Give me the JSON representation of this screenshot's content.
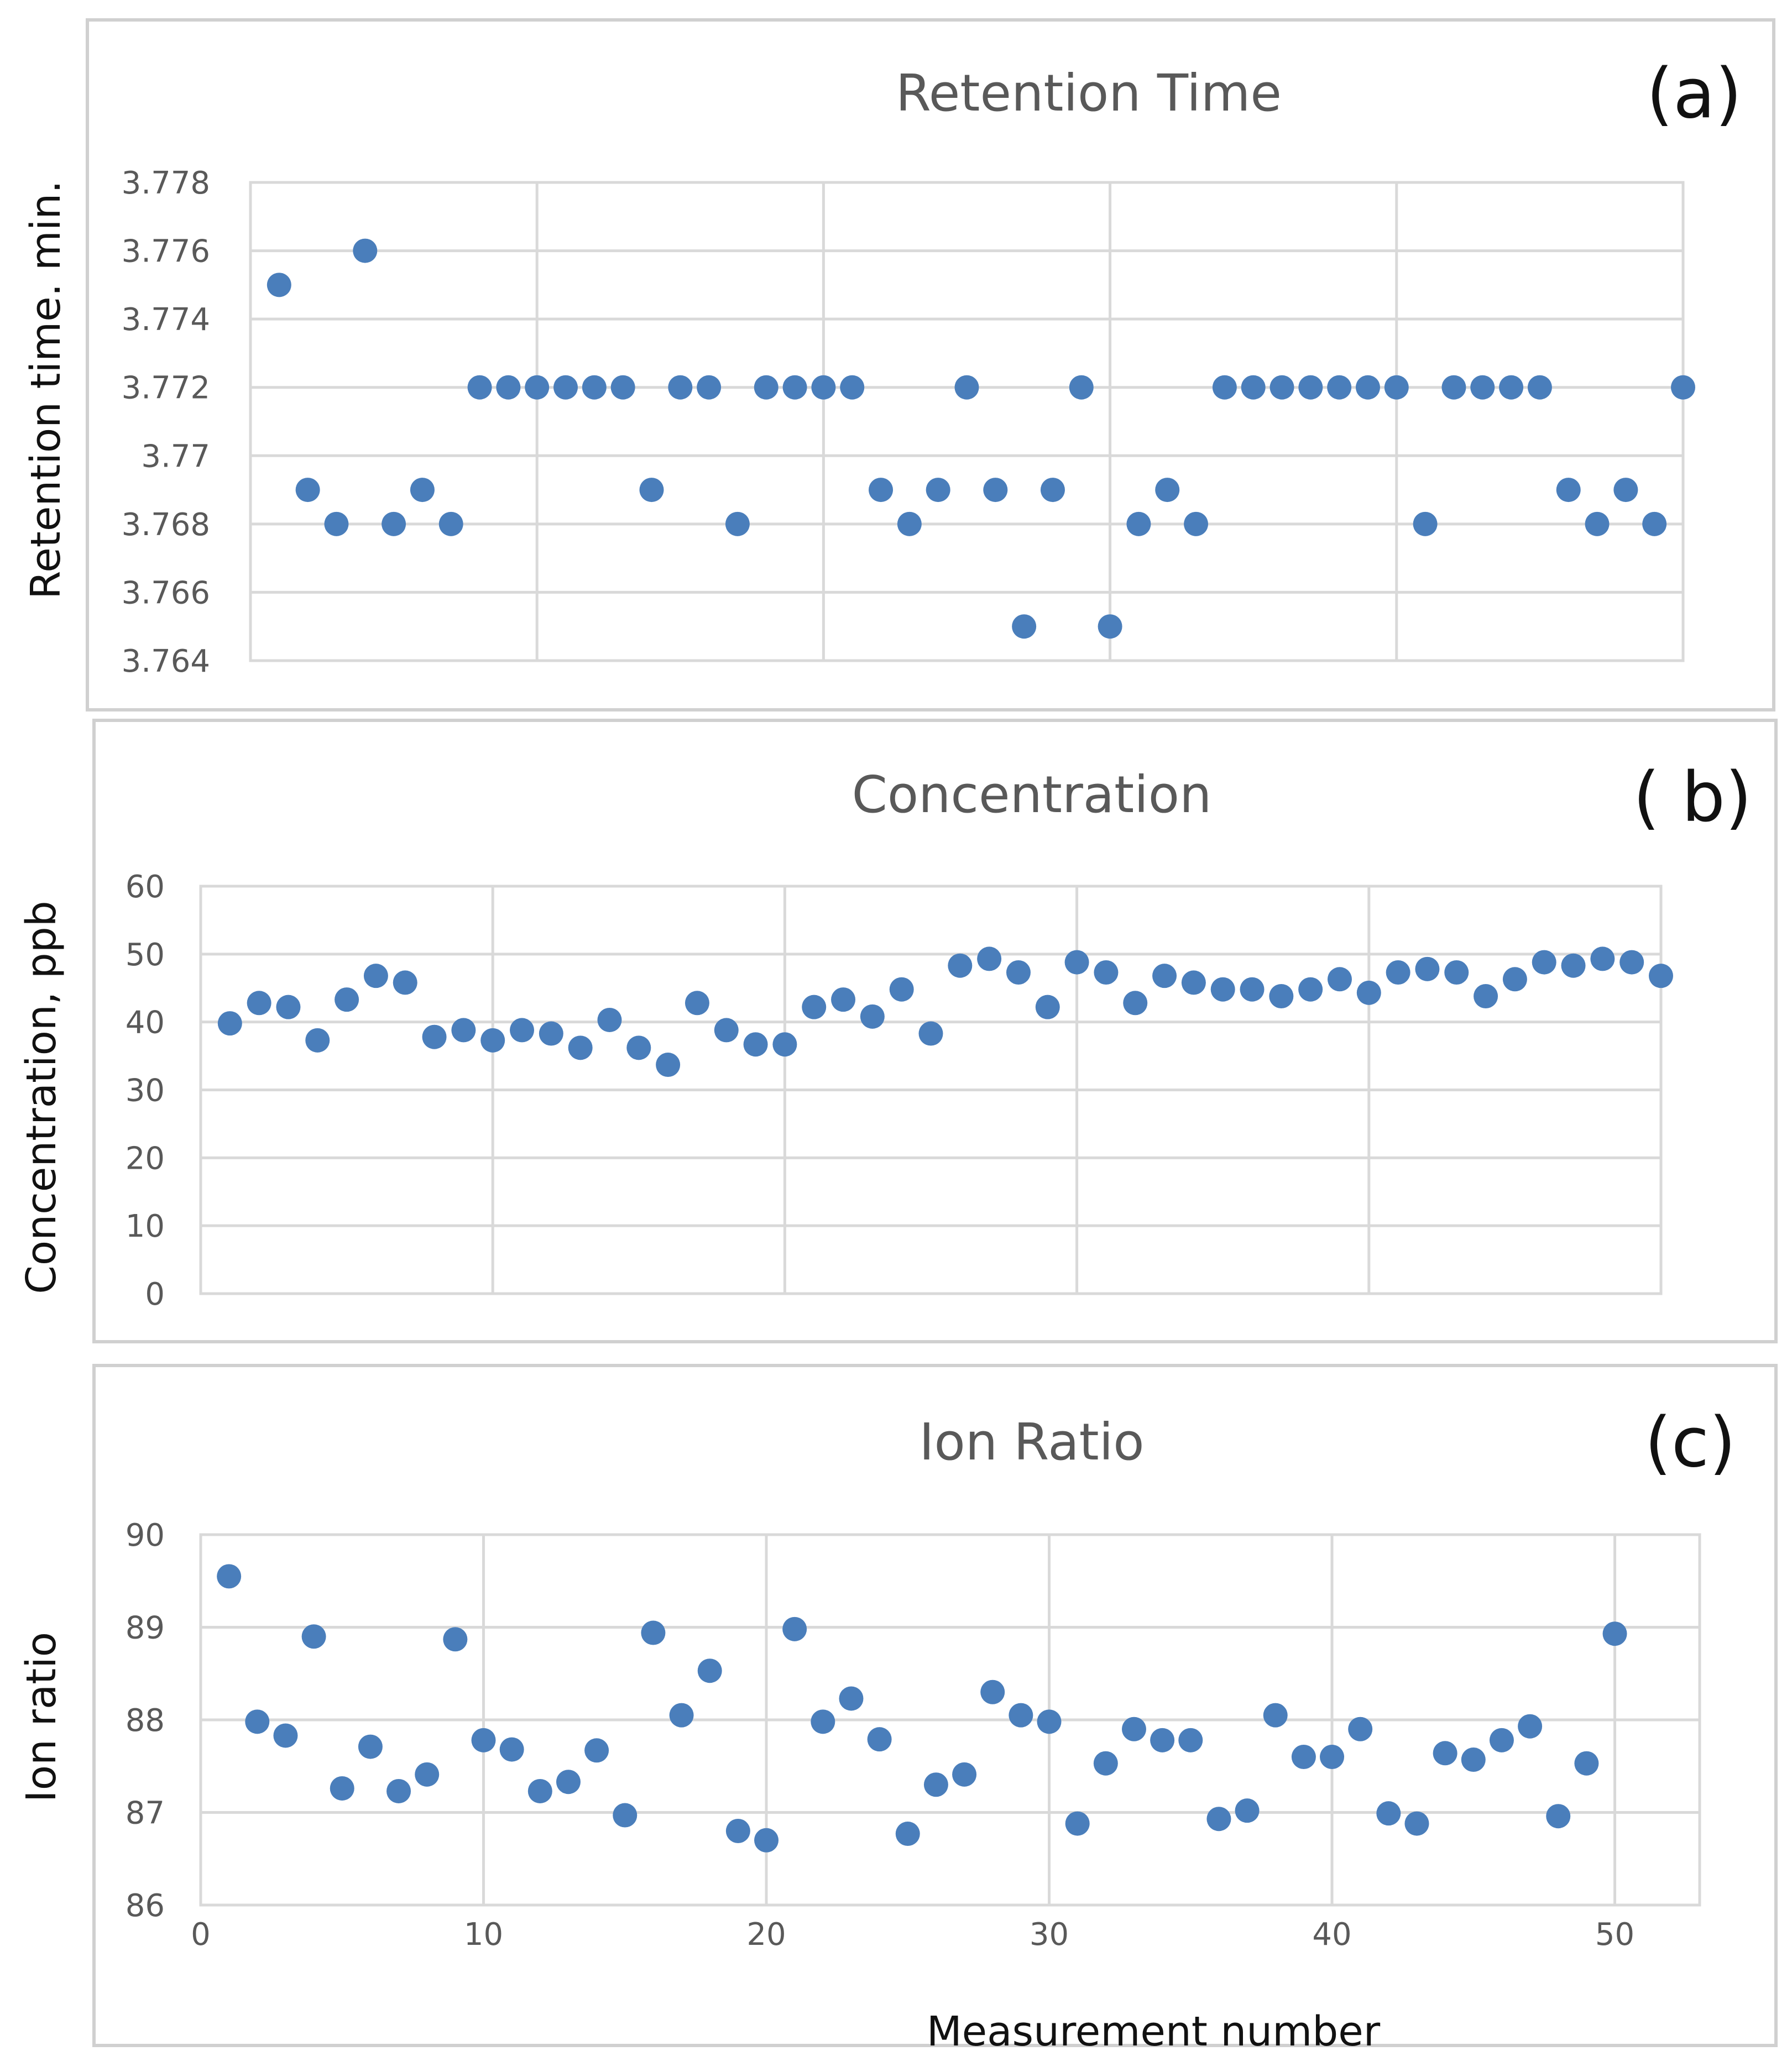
{
  "chart_data": [
    {
      "id": "a",
      "type": "scatter",
      "title": "Retention Time",
      "panel_label": "(a)",
      "ylabel": "Retention time. min.",
      "xlabel": "",
      "xlim": [
        0,
        50
      ],
      "ylim": [
        3.764,
        3.778
      ],
      "yticks": [
        3.764,
        3.766,
        3.768,
        3.77,
        3.772,
        3.774,
        3.776,
        3.778
      ],
      "ytick_labels": [
        "3.764",
        "3.766",
        "3.768",
        "3.77",
        "3.772",
        "3.774",
        "3.776",
        "3.778"
      ],
      "xgrid": [
        10,
        20,
        30,
        40
      ],
      "grid": true,
      "marker_color": "#4a7ebb",
      "x": [
        1,
        2,
        3,
        4,
        5,
        6,
        7,
        8,
        9,
        10,
        11,
        12,
        13,
        14,
        15,
        16,
        17,
        18,
        19,
        20,
        21,
        22,
        23,
        24,
        25,
        26,
        27,
        28,
        29,
        30,
        31,
        32,
        33,
        34,
        35,
        36,
        37,
        38,
        39,
        40,
        41,
        42,
        43,
        44,
        45,
        46,
        47,
        48,
        49,
        50
      ],
      "values": [
        3.775,
        3.769,
        3.768,
        3.776,
        3.768,
        3.769,
        3.768,
        3.772,
        3.772,
        3.772,
        3.772,
        3.772,
        3.772,
        3.769,
        3.772,
        3.772,
        3.768,
        3.772,
        3.772,
        3.772,
        3.772,
        3.769,
        3.768,
        3.769,
        3.772,
        3.769,
        3.765,
        3.769,
        3.772,
        3.765,
        3.768,
        3.769,
        3.768,
        3.772,
        3.772,
        3.772,
        3.772,
        3.772,
        3.772,
        3.772,
        3.768,
        3.772,
        3.772,
        3.772,
        3.772,
        3.769,
        3.768,
        3.769,
        3.768,
        3.772
      ]
    },
    {
      "id": "b",
      "type": "scatter",
      "title": "Concentration",
      "panel_label": "( b)",
      "ylabel": "Concentration, ppb",
      "xlabel": "",
      "xlim": [
        0,
        50
      ],
      "ylim": [
        0,
        60
      ],
      "yticks": [
        0,
        10,
        20,
        30,
        40,
        50,
        60
      ],
      "ytick_labels": [
        "0",
        "10",
        "20",
        "30",
        "40",
        "50",
        "60"
      ],
      "xgrid": [
        10,
        20,
        30,
        40
      ],
      "grid": true,
      "marker_color": "#4a7ebb",
      "x": [
        1,
        2,
        3,
        4,
        5,
        6,
        7,
        8,
        9,
        10,
        11,
        12,
        13,
        14,
        15,
        16,
        17,
        18,
        19,
        20,
        21,
        22,
        23,
        24,
        25,
        26,
        27,
        28,
        29,
        30,
        31,
        32,
        33,
        34,
        35,
        36,
        37,
        38,
        39,
        40,
        41,
        42,
        43,
        44,
        45,
        46,
        47,
        48,
        49,
        50
      ],
      "values": [
        39.8,
        42.8,
        42.2,
        37.3,
        43.3,
        46.8,
        45.8,
        37.8,
        38.8,
        37.3,
        38.8,
        38.3,
        36.2,
        40.3,
        36.2,
        33.7,
        42.8,
        38.8,
        36.7,
        36.7,
        42.2,
        43.3,
        40.8,
        44.8,
        38.3,
        48.3,
        49.3,
        47.3,
        42.2,
        48.8,
        47.3,
        42.8,
        46.8,
        45.8,
        44.8,
        44.8,
        43.8,
        44.8,
        46.3,
        44.3,
        47.3,
        47.8,
        47.3,
        43.8,
        46.3,
        48.8,
        48.3,
        49.3,
        48.8,
        46.8
      ]
    },
    {
      "id": "c",
      "type": "scatter",
      "title": "Ion Ratio",
      "panel_label": "(c)",
      "ylabel": "Ion ratio",
      "xlabel": "Measurement number",
      "xlim": [
        0,
        53
      ],
      "ylim": [
        86,
        90
      ],
      "yticks": [
        86,
        87,
        88,
        89,
        90
      ],
      "ytick_labels": [
        "86",
        "87",
        "88",
        "89",
        "90"
      ],
      "xticks": [
        0,
        10,
        20,
        30,
        40,
        50
      ],
      "xtick_labels": [
        "0",
        "10",
        "20",
        "30",
        "40",
        "50"
      ],
      "xgrid": [
        10,
        20,
        30,
        40,
        50
      ],
      "grid": true,
      "marker_color": "#4a7ebb",
      "x": [
        1,
        2,
        3,
        4,
        5,
        6,
        7,
        8,
        9,
        10,
        11,
        12,
        13,
        14,
        15,
        16,
        17,
        18,
        19,
        20,
        21,
        22,
        23,
        24,
        25,
        26,
        27,
        28,
        29,
        30,
        31,
        32,
        33,
        34,
        35,
        36,
        37,
        38,
        39,
        40,
        41,
        42,
        43,
        44,
        45,
        46,
        47,
        48,
        49,
        50
      ],
      "values": [
        89.55,
        87.98,
        87.83,
        88.9,
        87.26,
        87.71,
        87.23,
        87.41,
        88.87,
        87.78,
        87.68,
        87.23,
        87.33,
        87.67,
        86.97,
        88.94,
        88.05,
        88.53,
        86.8,
        86.7,
        88.98,
        87.98,
        88.23,
        87.79,
        86.77,
        87.3,
        87.41,
        88.3,
        88.05,
        87.98,
        86.88,
        87.53,
        87.9,
        87.78,
        87.78,
        86.93,
        87.02,
        88.05,
        87.6,
        87.6,
        87.9,
        86.99,
        86.88,
        87.64,
        87.57,
        87.78,
        87.93,
        86.96,
        87.53,
        88.93
      ]
    }
  ]
}
